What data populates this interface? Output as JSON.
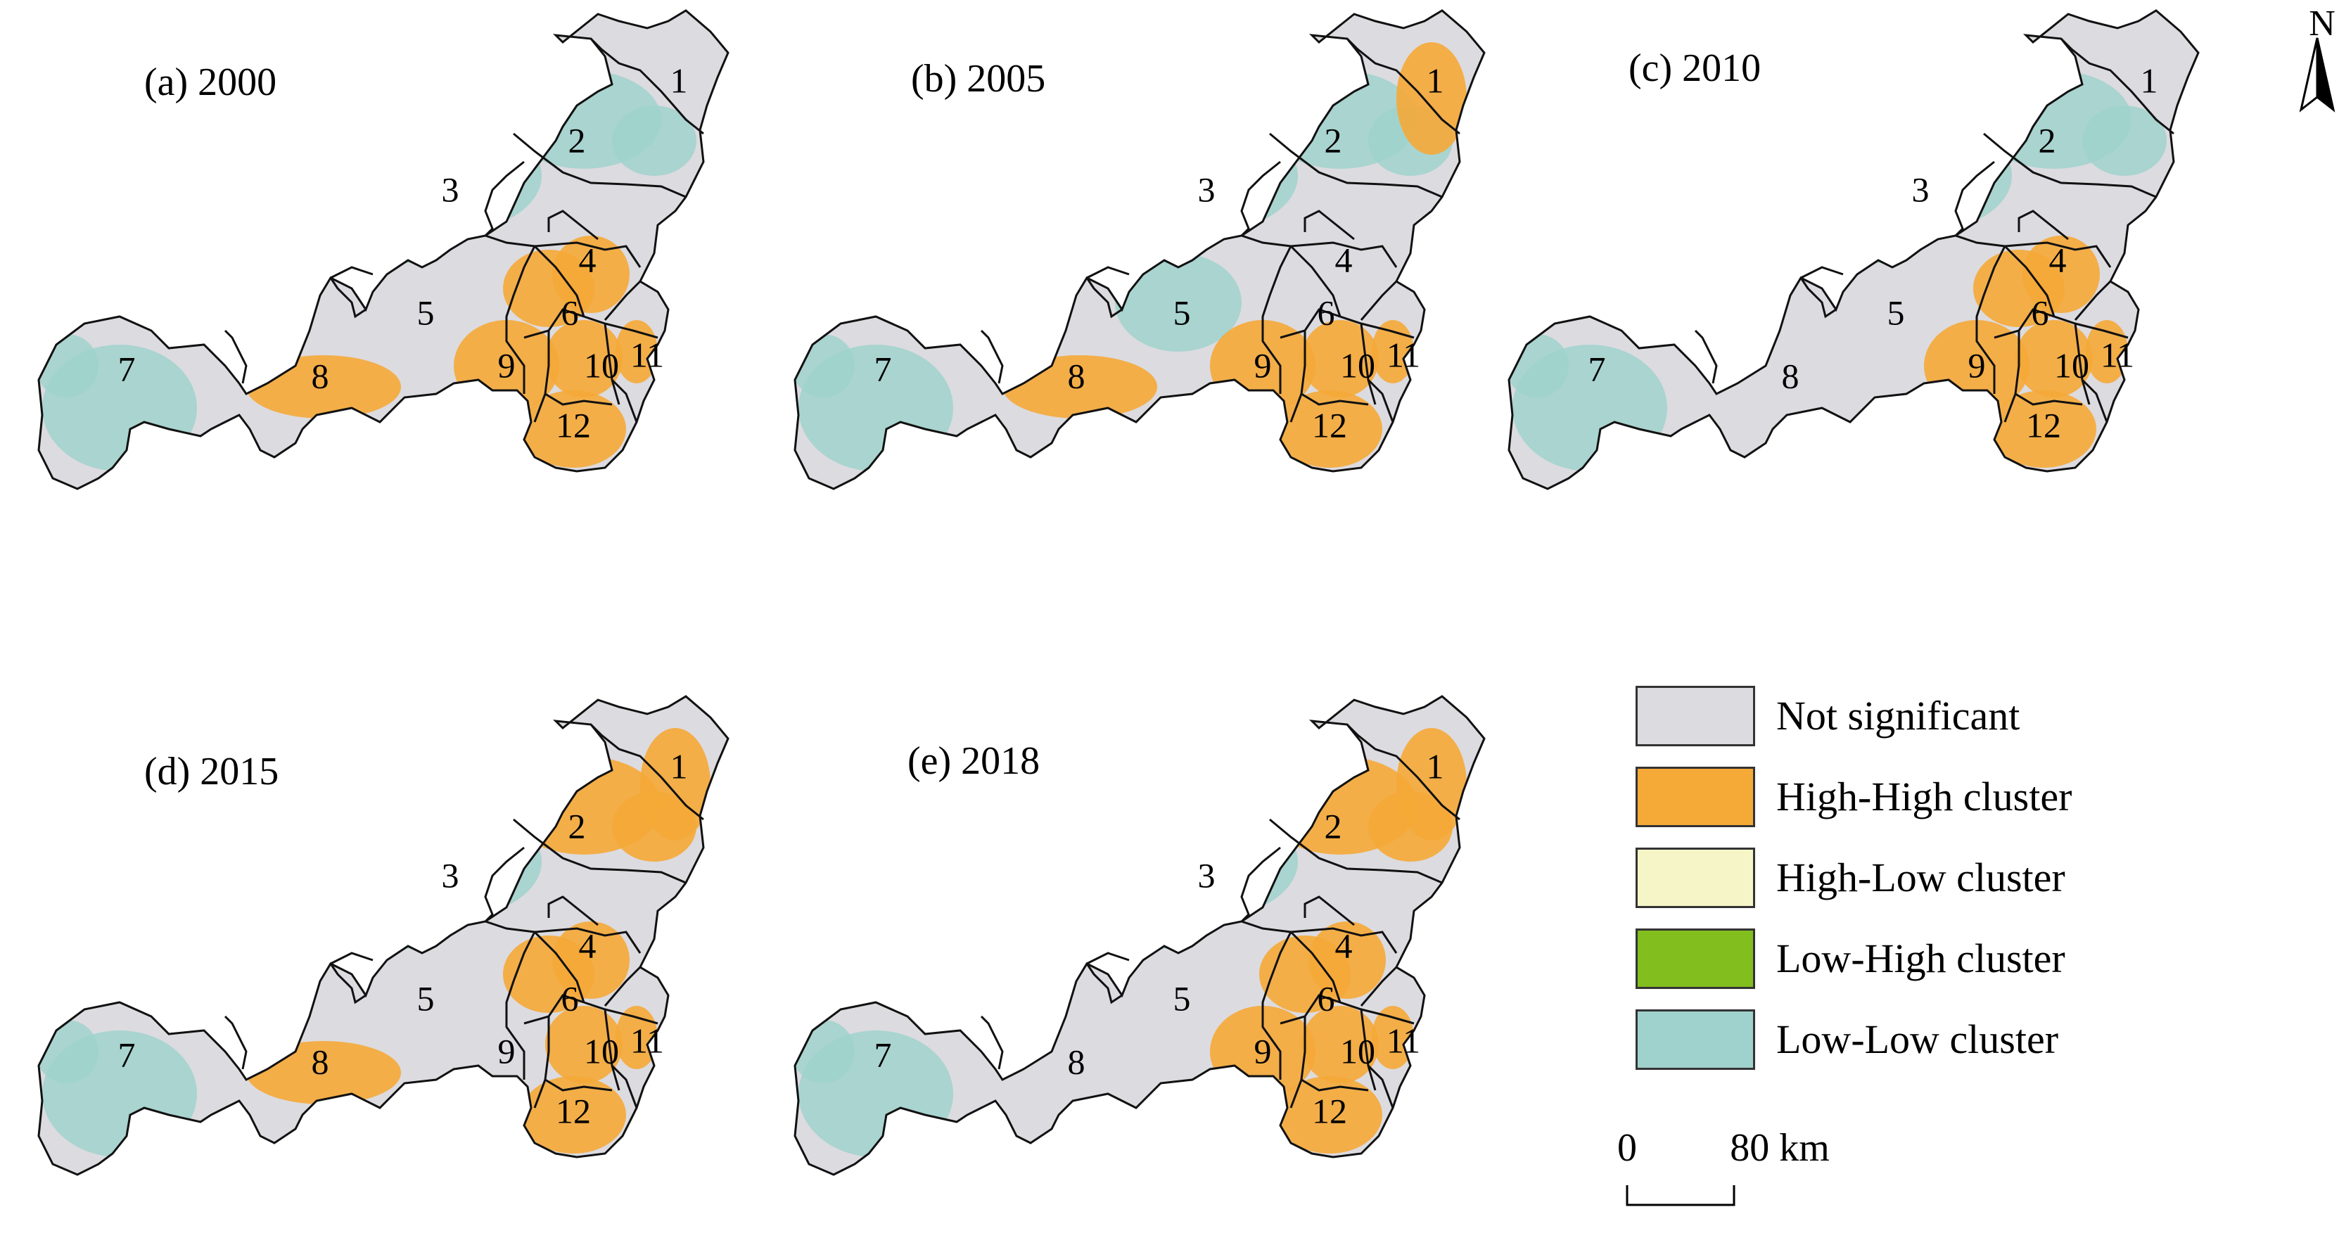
{
  "colors": {
    "not_significant": "#dcdbe0",
    "high_high": "#f5a937",
    "high_low": "#f5f5c8",
    "low_high": "#82be1e",
    "low_low": "#a0d2cd",
    "boundary": "#111111"
  },
  "maps": [
    {
      "id": "a",
      "title": "(a) 2000"
    },
    {
      "id": "b",
      "title": "(b) 2005"
    },
    {
      "id": "c",
      "title": "(c) 2010"
    },
    {
      "id": "d",
      "title": "(d) 2015"
    },
    {
      "id": "e",
      "title": "(e) 2018"
    }
  ],
  "regions": [
    "1",
    "2",
    "3",
    "4",
    "5",
    "6",
    "7",
    "8",
    "9",
    "10",
    "11",
    "12"
  ],
  "patterns": {
    "a": {
      "high_high": [
        "6",
        "9",
        "10",
        "12",
        "4",
        "11",
        "8"
      ],
      "low_low": [
        "3",
        "2",
        "7"
      ]
    },
    "b": {
      "high_high": [
        "9",
        "10",
        "12",
        "11",
        "8",
        "1"
      ],
      "low_low": [
        "3",
        "2",
        "7",
        "5"
      ]
    },
    "c": {
      "high_high": [
        "6",
        "9",
        "10",
        "12",
        "11",
        "4"
      ],
      "low_low": [
        "3",
        "2",
        "7"
      ]
    },
    "d": {
      "high_high": [
        "1",
        "2",
        "4",
        "6",
        "10",
        "11",
        "12",
        "8"
      ],
      "low_low": [
        "3",
        "7"
      ]
    },
    "e": {
      "high_high": [
        "1",
        "2",
        "4",
        "6",
        "9",
        "10",
        "12",
        "11"
      ],
      "low_low": [
        "3",
        "7"
      ]
    }
  },
  "legend": [
    {
      "key": "not_significant",
      "label": "Not significant"
    },
    {
      "key": "high_high",
      "label": "High-High cluster"
    },
    {
      "key": "high_low",
      "label": "High-Low cluster"
    },
    {
      "key": "low_high",
      "label": "Low-High cluster"
    },
    {
      "key": "low_low",
      "label": "Low-Low cluster"
    }
  ],
  "scale_bar": {
    "start": "0",
    "end": "80 km"
  },
  "north_arrow": {
    "label": "N"
  }
}
